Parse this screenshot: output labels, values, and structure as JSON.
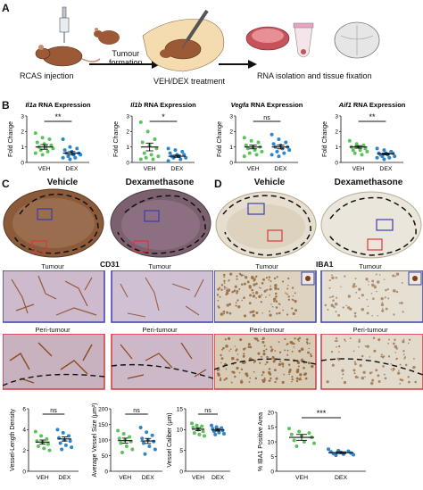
{
  "panel_labels": {
    "a": "A",
    "b": "B",
    "c": "C",
    "d": "D"
  },
  "schematic": {
    "step1": "RCAS injection",
    "step2_line1": "Tumour",
    "step2_line2": "formation",
    "step3": "VEH/DEX treatment",
    "step4": "RNA isolation and tissue fixation"
  },
  "colors": {
    "veh": "#5cc25a",
    "dex": "#2e86c9",
    "tumour_box": "#3b3fa8",
    "peri_box": "#d9363e",
    "brown": "#8a4a22",
    "cd31_bg": "#c8b7c6",
    "iba1_bg": "#ddd6c8"
  },
  "panel_c": {
    "vehicle": "Vehicle",
    "dex": "Dexamethasone",
    "marker": "CD31",
    "tumour": "Tumour",
    "peri": "Peri-tumour"
  },
  "panel_d": {
    "vehicle": "Vehicle",
    "dex": "Dexamethasone",
    "marker": "IBA1",
    "tumour": "Tumour",
    "peri": "Peri-tumour"
  },
  "chart_data": [
    {
      "type": "scatter",
      "title_gene": "Il1a",
      "title_suffix": " RNA Expression",
      "ylabel": "Fold Change",
      "ylim": [
        0,
        3
      ],
      "yticks": [
        "0",
        "1",
        "2",
        "3"
      ],
      "categories": [
        "VEH",
        "DEX"
      ],
      "sig": "**",
      "series": [
        {
          "name": "VEH",
          "values": [
            1.9,
            1.6,
            1.5,
            1.3,
            1.2,
            1.1,
            1.0,
            1.0,
            0.9,
            0.8,
            0.7,
            0.6,
            0.5
          ]
        },
        {
          "name": "DEX",
          "values": [
            1.5,
            1.0,
            0.9,
            0.8,
            0.7,
            0.6,
            0.6,
            0.5,
            0.5,
            0.4,
            0.3,
            0.3,
            0.2
          ]
        }
      ],
      "mean": [
        1.0,
        0.6
      ],
      "sem": [
        0.15,
        0.1
      ]
    },
    {
      "type": "scatter",
      "title_gene": "Il1b",
      "title_suffix": " RNA Expression",
      "ylabel": "Fold Change",
      "ylim": [
        0,
        3
      ],
      "yticks": [
        "0",
        "1",
        "2",
        "3"
      ],
      "categories": [
        "VEH",
        "DEX"
      ],
      "sig": "*",
      "series": [
        {
          "name": "VEH",
          "values": [
            2.6,
            2.0,
            1.5,
            1.3,
            1.1,
            0.9,
            0.6,
            0.5,
            0.4,
            0.3,
            0.2,
            0.2
          ]
        },
        {
          "name": "DEX",
          "values": [
            0.9,
            0.8,
            0.7,
            0.6,
            0.5,
            0.5,
            0.4,
            0.4,
            0.3,
            0.3,
            0.2,
            0.1
          ]
        }
      ],
      "mean": [
        1.0,
        0.4
      ],
      "sem": [
        0.25,
        0.07
      ]
    },
    {
      "type": "scatter",
      "title_gene": "Vegfa",
      "title_suffix": " RNA Expression",
      "ylabel": "Fold Change",
      "ylim": [
        0,
        3
      ],
      "yticks": [
        "0",
        "1",
        "2",
        "3"
      ],
      "categories": [
        "VEH",
        "DEX"
      ],
      "sig": "ns",
      "series": [
        {
          "name": "VEH",
          "values": [
            1.6,
            1.4,
            1.3,
            1.1,
            1.0,
            1.0,
            0.9,
            0.8,
            0.7,
            0.6,
            0.5,
            0.4
          ]
        },
        {
          "name": "DEX",
          "values": [
            1.8,
            1.5,
            1.3,
            1.2,
            1.1,
            1.0,
            1.0,
            0.9,
            0.8,
            0.7,
            0.6,
            0.5,
            0.4
          ]
        }
      ],
      "mean": [
        1.0,
        1.0
      ],
      "sem": [
        0.12,
        0.12
      ]
    },
    {
      "type": "scatter",
      "title_gene": "Aif1",
      "title_suffix": " RNA Expression",
      "ylabel": "Fold Change",
      "ylim": [
        0,
        3
      ],
      "yticks": [
        "0",
        "1",
        "2",
        "3"
      ],
      "categories": [
        "VEH",
        "DEX"
      ],
      "sig": "**",
      "series": [
        {
          "name": "VEH",
          "values": [
            1.4,
            1.2,
            1.1,
            1.0,
            1.0,
            0.9,
            0.8,
            0.8,
            0.7,
            0.6,
            0.5
          ]
        },
        {
          "name": "DEX",
          "values": [
            0.9,
            0.8,
            0.7,
            0.6,
            0.6,
            0.6,
            0.5,
            0.5,
            0.4,
            0.4,
            0.3,
            0.3,
            0.2
          ]
        }
      ],
      "mean": [
        1.0,
        0.55
      ],
      "sem": [
        0.08,
        0.06
      ]
    },
    {
      "type": "scatter",
      "ylabel": "Vessel-Length Density",
      "ylim": [
        0,
        6
      ],
      "yticks": [
        "0",
        "2",
        "4",
        "6"
      ],
      "categories": [
        "VEH",
        "DEX"
      ],
      "sig": "ns",
      "series": [
        {
          "name": "VEH",
          "values": [
            3.8,
            3.4,
            3.1,
            2.9,
            2.8,
            2.6,
            2.4,
            2.2,
            2.0
          ]
        },
        {
          "name": "DEX",
          "values": [
            4.0,
            3.7,
            3.4,
            3.2,
            3.0,
            2.9,
            2.7,
            2.5,
            2.3,
            2.1
          ]
        }
      ],
      "mean": [
        2.8,
        3.1
      ],
      "sem": [
        0.2,
        0.2
      ]
    },
    {
      "type": "scatter",
      "ylabel": "Average Vessel Size (μm²)",
      "ylim": [
        0,
        200
      ],
      "yticks": [
        "0",
        "50",
        "100",
        "150",
        "200"
      ],
      "categories": [
        "VEH",
        "DEX"
      ],
      "sig": "ns",
      "series": [
        {
          "name": "VEH",
          "values": [
            130,
            120,
            110,
            105,
            100,
            95,
            90,
            80,
            70,
            60
          ]
        },
        {
          "name": "DEX",
          "values": [
            140,
            125,
            115,
            105,
            100,
            95,
            90,
            80,
            70,
            55
          ]
        }
      ],
      "mean": [
        98,
        97
      ],
      "sem": [
        8,
        8
      ]
    },
    {
      "type": "scatter",
      "ylabel": "Vessel Caliber (μm)",
      "ylim": [
        0,
        15
      ],
      "yticks": [
        "0",
        "5",
        "10",
        "15"
      ],
      "categories": [
        "VEH",
        "DEX"
      ],
      "sig": "ns",
      "series": [
        {
          "name": "VEH",
          "values": [
            11.5,
            11,
            10.8,
            10.5,
            10,
            9.6,
            9.2,
            8.8,
            8.5
          ]
        },
        {
          "name": "DEX",
          "values": [
            11,
            10.6,
            10.4,
            10.2,
            10,
            9.8,
            9.6,
            9.3,
            9.0,
            8.8
          ]
        }
      ],
      "mean": [
        10.1,
        9.9
      ],
      "sem": [
        0.35,
        0.25
      ]
    },
    {
      "type": "scatter",
      "ylabel": "% IBA1 Positive Area",
      "ylim": [
        0,
        20
      ],
      "yticks": [
        "0",
        "5",
        "10",
        "15",
        "20"
      ],
      "categories": [
        "VEH",
        "DEX"
      ],
      "sig": "***",
      "series": [
        {
          "name": "VEH",
          "values": [
            14.5,
            13.5,
            13,
            12.5,
            12,
            11.5,
            10.5,
            10,
            9.5,
            8.5
          ]
        },
        {
          "name": "DEX",
          "values": [
            7.5,
            7,
            6.8,
            6.6,
            6.4,
            6.2,
            6,
            5.8,
            5.6,
            5.4
          ]
        }
      ],
      "mean": [
        11.5,
        6.3
      ],
      "sem": [
        1.0,
        0.3
      ]
    }
  ]
}
